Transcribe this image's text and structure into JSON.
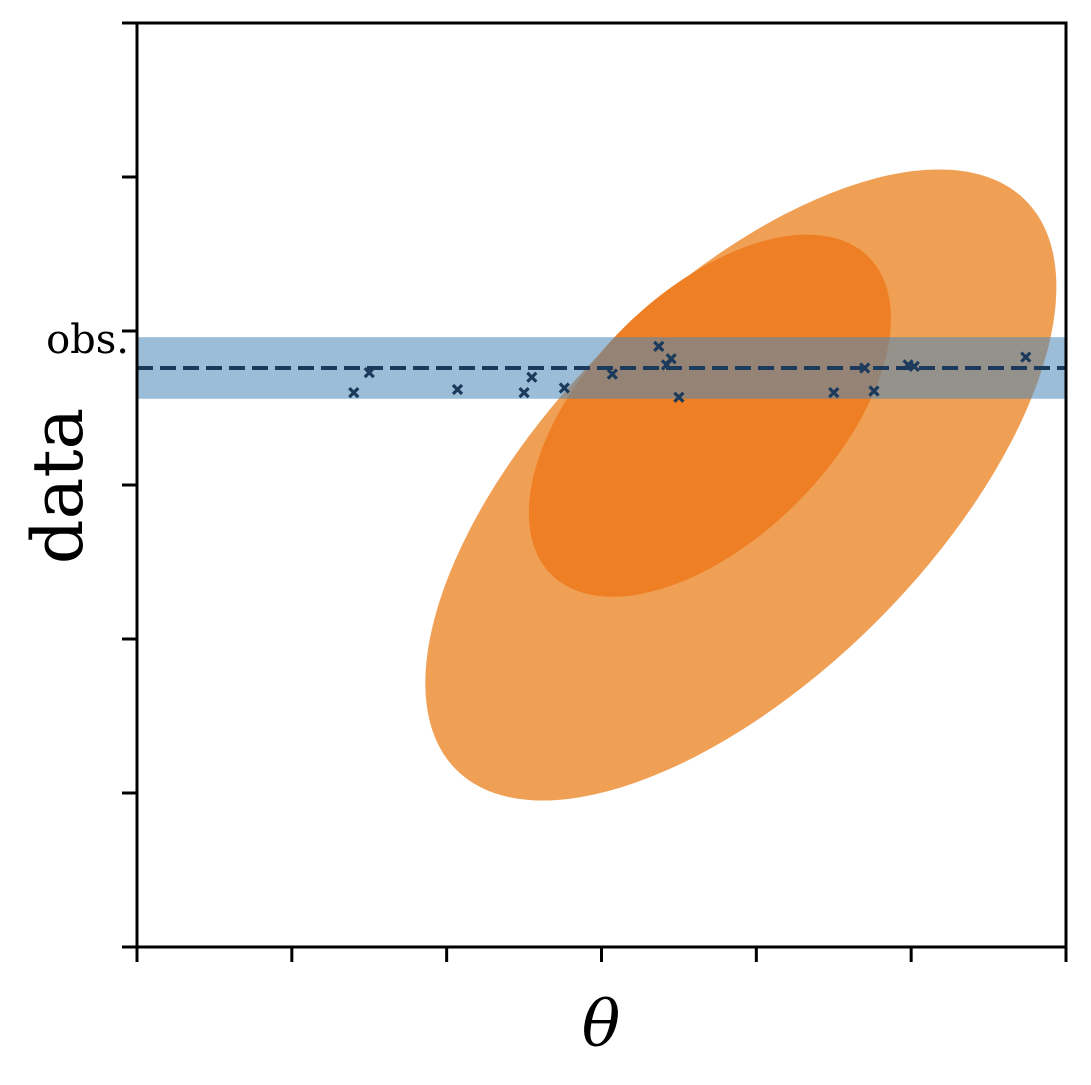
{
  "chart_data": {
    "type": "scatter",
    "title": "",
    "xlabel": "θ",
    "ylabel": "data",
    "xlim": [
      0,
      6
    ],
    "ylim": [
      0,
      6
    ],
    "x_ticks": [
      0,
      1,
      2,
      3,
      4,
      5,
      6
    ],
    "y_ticks": [
      0,
      1,
      2,
      3,
      4,
      5,
      6
    ],
    "y_tick_labels": [
      {
        "value": 4,
        "label": "obs."
      }
    ],
    "grid": false,
    "legend": "none",
    "observed_line": {
      "y": 3.76,
      "style": "dashed",
      "color": "#1b3a5c"
    },
    "observed_band": {
      "y_min": 3.56,
      "y_max": 3.96,
      "color": "#4a86b8"
    },
    "contours": [
      {
        "level": "outer",
        "center": [
          3.9,
          3.0
        ],
        "semi_axes": [
          2.6,
          1.25
        ],
        "angle_deg": 45,
        "color": "#f0a055"
      },
      {
        "level": "inner",
        "center": [
          3.7,
          3.45
        ],
        "semi_axes": [
          1.45,
          0.8
        ],
        "angle_deg": 45,
        "color": "#ef7f25"
      }
    ],
    "points": {
      "marker": "x",
      "color": "#1b3a5c",
      "x": [
        1.4,
        1.5,
        2.07,
        2.5,
        2.55,
        2.76,
        3.07,
        3.37,
        3.42,
        3.45,
        3.5,
        4.5,
        4.7,
        4.76,
        4.98,
        5.02,
        5.74
      ],
      "y": [
        3.6,
        3.73,
        3.62,
        3.6,
        3.7,
        3.63,
        3.72,
        3.9,
        3.78,
        3.82,
        3.57,
        3.6,
        3.76,
        3.61,
        3.78,
        3.77,
        3.83
      ]
    }
  }
}
